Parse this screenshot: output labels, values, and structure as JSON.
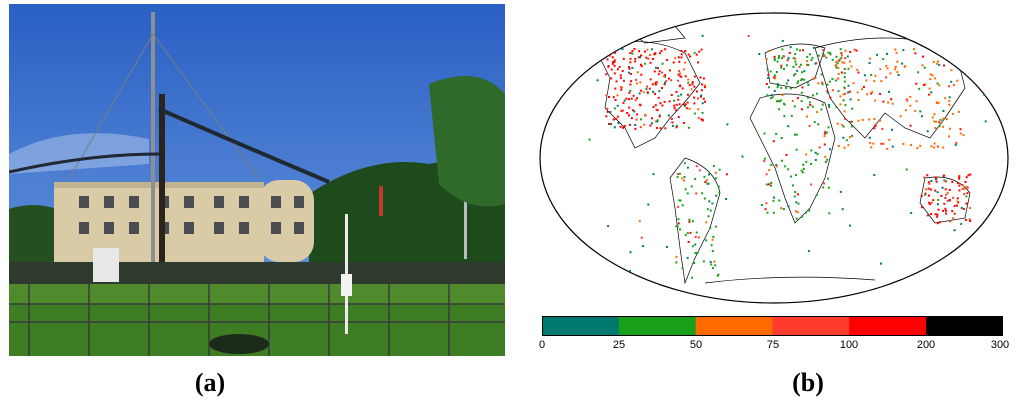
{
  "captions": {
    "a": "(a)",
    "b": "(b)"
  },
  "photo": {
    "subject": "weather-station-photo"
  },
  "map": {
    "colorbar": {
      "ticks": [
        "0",
        "25",
        "50",
        "75",
        "100",
        "200",
        "300"
      ],
      "colors": [
        "#007a70",
        "#19a019",
        "#ff6a00",
        "#ff3b2e",
        "#ff0000",
        "#000000"
      ]
    },
    "dot_colors": [
      "#007a70",
      "#19a019",
      "#ff6a00",
      "#ff3b2e",
      "#ff0000"
    ]
  }
}
